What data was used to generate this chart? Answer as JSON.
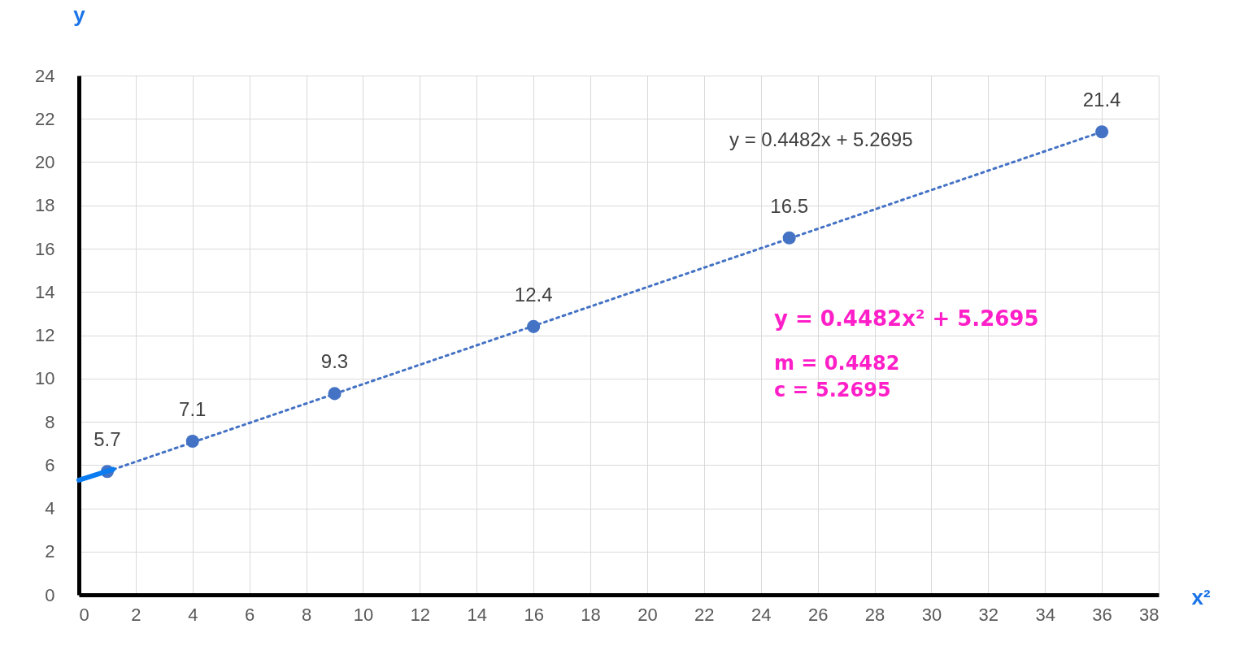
{
  "chart_data": {
    "type": "scatter",
    "xlabel": "x²",
    "ylabel": "y",
    "xlim": [
      0,
      38
    ],
    "xticks": [
      0,
      2,
      4,
      6,
      8,
      10,
      12,
      14,
      16,
      18,
      20,
      22,
      24,
      26,
      28,
      30,
      32,
      34,
      36,
      38
    ],
    "ylim": [
      0,
      24
    ],
    "yticks": [
      0,
      2,
      4,
      6,
      8,
      10,
      12,
      14,
      16,
      18,
      20,
      22,
      24
    ],
    "grid": true,
    "marker": "circle",
    "series": [
      {
        "color": "#4472c4",
        "x": [
          1,
          4,
          9,
          16,
          25,
          36
        ],
        "values": [
          5.7,
          7.1,
          9.3,
          12.4,
          16.5,
          21.4
        ],
        "value_labels": [
          "5.7",
          "7.1",
          "9.3",
          "12.4",
          "16.5",
          "21.4"
        ]
      },
      {
        "type": "line",
        "marker": "none",
        "color": "#4472c4",
        "line_style": "dotted",
        "x": [
          1,
          36
        ],
        "values": [
          5.7,
          21.4
        ]
      },
      {
        "type": "line",
        "marker": "none",
        "color": "#0a7cf0",
        "line_style": "solid",
        "x": [
          0,
          1.2
        ],
        "values": [
          5.3,
          5.8
        ]
      }
    ],
    "annotations": [
      "y = 0.4482x + 5.2695",
      "y = 0.4482x² + 5.2695",
      "m = 0.4482",
      "c = 5.2695"
    ]
  }
}
